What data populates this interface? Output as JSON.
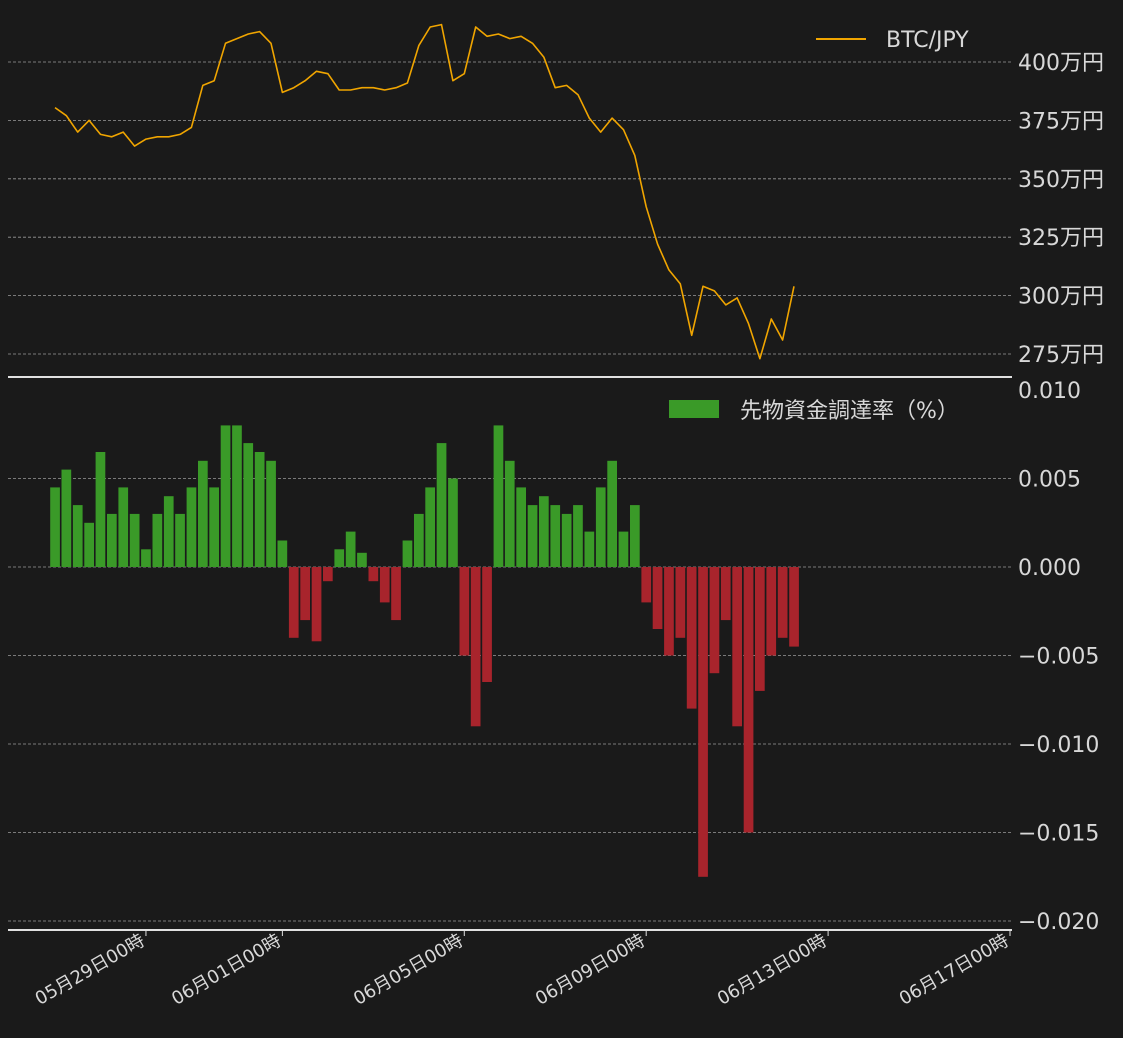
{
  "chart_data": [
    {
      "type": "line",
      "series": [
        {
          "name": "BTC/JPY",
          "color": "#f0a500",
          "points": [
            [
              "05/27 00:00",
              3805000
            ],
            [
              "05/27 06:00",
              3770000
            ],
            [
              "05/27 12:00",
              3700000
            ],
            [
              "05/27 18:00",
              3750000
            ],
            [
              "05/28 00:00",
              3690000
            ],
            [
              "05/28 06:00",
              3680000
            ],
            [
              "05/28 12:00",
              3700000
            ],
            [
              "05/28 18:00",
              3640000
            ],
            [
              "05/29 00:00",
              3670000
            ],
            [
              "05/29 06:00",
              3680000
            ],
            [
              "05/29 12:00",
              3680000
            ],
            [
              "05/29 18:00",
              3690000
            ],
            [
              "05/30 00:00",
              3720000
            ],
            [
              "05/30 06:00",
              3900000
            ],
            [
              "05/30 12:00",
              3920000
            ],
            [
              "05/30 18:00",
              4080000
            ],
            [
              "05/31 00:00",
              4100000
            ],
            [
              "05/31 06:00",
              4120000
            ],
            [
              "05/31 12:00",
              4130000
            ],
            [
              "05/31 18:00",
              4080000
            ],
            [
              "06/01 00:00",
              3870000
            ],
            [
              "06/01 06:00",
              3890000
            ],
            [
              "06/01 12:00",
              3920000
            ],
            [
              "06/01 18:00",
              3960000
            ],
            [
              "06/02 00:00",
              3950000
            ],
            [
              "06/02 06:00",
              3880000
            ],
            [
              "06/02 12:00",
              3880000
            ],
            [
              "06/02 18:00",
              3890000
            ],
            [
              "06/03 00:00",
              3890000
            ],
            [
              "06/03 06:00",
              3880000
            ],
            [
              "06/03 12:00",
              3890000
            ],
            [
              "06/03 18:00",
              3910000
            ],
            [
              "06/04 00:00",
              4070000
            ],
            [
              "06/04 06:00",
              4150000
            ],
            [
              "06/04 12:00",
              4160000
            ],
            [
              "06/04 18:00",
              3920000
            ],
            [
              "06/05 00:00",
              3950000
            ],
            [
              "06/05 06:00",
              4150000
            ],
            [
              "06/05 12:00",
              4110000
            ],
            [
              "06/05 18:00",
              4120000
            ],
            [
              "06/06 00:00",
              4100000
            ],
            [
              "06/06 06:00",
              4110000
            ],
            [
              "06/06 12:00",
              4080000
            ],
            [
              "06/06 18:00",
              4020000
            ],
            [
              "06/07 00:00",
              3890000
            ],
            [
              "06/07 06:00",
              3900000
            ],
            [
              "06/07 12:00",
              3860000
            ],
            [
              "06/07 18:00",
              3760000
            ],
            [
              "06/08 00:00",
              3700000
            ],
            [
              "06/08 06:00",
              3760000
            ],
            [
              "06/08 12:00",
              3710000
            ],
            [
              "06/08 18:00",
              3600000
            ],
            [
              "06/09 00:00",
              3380000
            ],
            [
              "06/09 06:00",
              3220000
            ],
            [
              "06/09 12:00",
              3110000
            ],
            [
              "06/09 18:00",
              3050000
            ],
            [
              "06/10 00:00",
              2830000
            ],
            [
              "06/10 06:00",
              3040000
            ],
            [
              "06/10 12:00",
              3020000
            ],
            [
              "06/10 18:00",
              2960000
            ],
            [
              "06/11 00:00",
              2990000
            ],
            [
              "06/11 06:00",
              2880000
            ],
            [
              "06/11 12:00",
              2730000
            ],
            [
              "06/11 18:00",
              2900000
            ],
            [
              "06/12 00:00",
              2810000
            ],
            [
              "06/12 06:00",
              3040000
            ]
          ]
        }
      ],
      "ylim": [
        2700000,
        4170000
      ],
      "y_ticks": [
        2750000,
        3000000,
        3250000,
        3500000,
        3750000,
        4000000
      ],
      "y_tick_labels": [
        "275万円",
        "300万円",
        "325万円",
        "350万円",
        "375万円",
        "400万円"
      ],
      "legend_position": "top-right",
      "grid": true
    },
    {
      "type": "bar",
      "series": [
        {
          "name": "先物資金調達率（%）",
          "positive_color": "#3a9a28",
          "negative_color": "#a8242c",
          "points": [
            [
              "05/27 00:00",
              0.0045
            ],
            [
              "05/27 06:00",
              0.0055
            ],
            [
              "05/27 12:00",
              0.0035
            ],
            [
              "05/27 18:00",
              0.0025
            ],
            [
              "05/28 00:00",
              0.0065
            ],
            [
              "05/28 06:00",
              0.003
            ],
            [
              "05/28 12:00",
              0.0045
            ],
            [
              "05/28 18:00",
              0.003
            ],
            [
              "05/29 00:00",
              0.001
            ],
            [
              "05/29 06:00",
              0.003
            ],
            [
              "05/29 12:00",
              0.004
            ],
            [
              "05/29 18:00",
              0.003
            ],
            [
              "05/30 00:00",
              0.0045
            ],
            [
              "05/30 06:00",
              0.006
            ],
            [
              "05/30 12:00",
              0.0045
            ],
            [
              "05/30 18:00",
              0.008
            ],
            [
              "05/31 00:00",
              0.008
            ],
            [
              "05/31 06:00",
              0.007
            ],
            [
              "05/31 12:00",
              0.0065
            ],
            [
              "05/31 18:00",
              0.006
            ],
            [
              "06/01 00:00",
              0.0015
            ],
            [
              "06/01 06:00",
              -0.004
            ],
            [
              "06/01 12:00",
              -0.003
            ],
            [
              "06/01 18:00",
              -0.0042
            ],
            [
              "06/02 00:00",
              -0.0008
            ],
            [
              "06/02 06:00",
              0.001
            ],
            [
              "06/02 12:00",
              0.002
            ],
            [
              "06/02 18:00",
              0.0008
            ],
            [
              "06/03 00:00",
              -0.0008
            ],
            [
              "06/03 06:00",
              -0.002
            ],
            [
              "06/03 12:00",
              -0.003
            ],
            [
              "06/03 18:00",
              0.0015
            ],
            [
              "06/04 00:00",
              0.003
            ],
            [
              "06/04 06:00",
              0.0045
            ],
            [
              "06/04 12:00",
              0.007
            ],
            [
              "06/04 18:00",
              0.005
            ],
            [
              "06/05 00:00",
              -0.005
            ],
            [
              "06/05 06:00",
              -0.009
            ],
            [
              "06/05 12:00",
              -0.0065
            ],
            [
              "06/05 18:00",
              0.008
            ],
            [
              "06/06 00:00",
              0.006
            ],
            [
              "06/06 06:00",
              0.0045
            ],
            [
              "06/06 12:00",
              0.0035
            ],
            [
              "06/06 18:00",
              0.004
            ],
            [
              "06/07 00:00",
              0.0035
            ],
            [
              "06/07 06:00",
              0.003
            ],
            [
              "06/07 12:00",
              0.0035
            ],
            [
              "06/07 18:00",
              0.002
            ],
            [
              "06/08 00:00",
              0.0045
            ],
            [
              "06/08 06:00",
              0.006
            ],
            [
              "06/08 12:00",
              0.002
            ],
            [
              "06/08 18:00",
              0.0035
            ],
            [
              "06/09 00:00",
              -0.002
            ],
            [
              "06/09 06:00",
              -0.0035
            ],
            [
              "06/09 12:00",
              -0.005
            ],
            [
              "06/09 18:00",
              -0.004
            ],
            [
              "06/10 00:00",
              -0.008
            ],
            [
              "06/10 06:00",
              -0.0175
            ],
            [
              "06/10 12:00",
              -0.006
            ],
            [
              "06/10 18:00",
              -0.003
            ],
            [
              "06/11 00:00",
              -0.009
            ],
            [
              "06/11 06:00",
              -0.015
            ],
            [
              "06/11 12:00",
              -0.007
            ],
            [
              "06/11 18:00",
              -0.005
            ],
            [
              "06/12 00:00",
              -0.004
            ],
            [
              "06/12 06:00",
              -0.0045
            ]
          ]
        }
      ],
      "ylim": [
        -0.02,
        0.01
      ],
      "y_ticks": [
        -0.02,
        -0.015,
        -0.01,
        -0.005,
        0.0,
        0.005,
        0.01
      ],
      "y_tick_labels": [
        "−0.020",
        "−0.015",
        "−0.010",
        "−0.005",
        "0.000",
        "0.005",
        "0.010"
      ],
      "x_ticks": [
        "05/29 00:00",
        "06/01 00:00",
        "06/05 00:00",
        "06/09 00:00",
        "06/13 00:00",
        "06/17 00:00"
      ],
      "x_tick_labels": [
        "05月29日00時",
        "06月01日00時",
        "06月05日00時",
        "06月09日00時",
        "06月13日00時",
        "06月17日00時"
      ],
      "legend_position": "top-right",
      "grid": true
    }
  ],
  "style": {
    "background": "#1a1a1a",
    "text_color": "#d8d8d8",
    "grid_color": "#bbbbbb",
    "axis_color": "#e0e0e0"
  }
}
